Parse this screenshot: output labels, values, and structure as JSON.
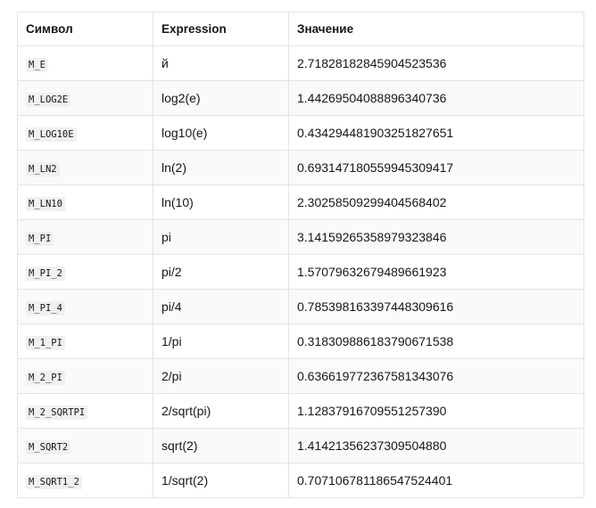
{
  "table": {
    "headers": {
      "symbol": "Символ",
      "expression": "Expression",
      "value": "Значение"
    },
    "rows": [
      {
        "symbol": "M_E",
        "expression": "й",
        "value": "2.71828182845904523536"
      },
      {
        "symbol": "M_LOG2E",
        "expression": "log2(e)",
        "value": "1.44269504088896340736"
      },
      {
        "symbol": "M_LOG10E",
        "expression": "log10(e)",
        "value": "0.434294481903251827651"
      },
      {
        "symbol": "M_LN2",
        "expression": "ln(2)",
        "value": "0.693147180559945309417"
      },
      {
        "symbol": "M_LN10",
        "expression": "ln(10)",
        "value": "2.30258509299404568402"
      },
      {
        "symbol": "M_PI",
        "expression": "pi",
        "value": "3.14159265358979323846"
      },
      {
        "symbol": "M_PI_2",
        "expression": "pi/2",
        "value": "1.57079632679489661923"
      },
      {
        "symbol": "M_PI_4",
        "expression": "pi/4",
        "value": "0.785398163397448309616"
      },
      {
        "symbol": "M_1_PI",
        "expression": "1/pi",
        "value": "0.318309886183790671538"
      },
      {
        "symbol": "M_2_PI",
        "expression": "2/pi",
        "value": "0.636619772367581343076"
      },
      {
        "symbol": "M_2_SQRTPI",
        "expression": "2/sqrt(pi)",
        "value": "1.12837916709551257390"
      },
      {
        "symbol": "M_SQRT2",
        "expression": "sqrt(2)",
        "value": "1.41421356237309504880"
      },
      {
        "symbol": "M_SQRT1_2",
        "expression": "1/sqrt(2)",
        "value": "0.707106781186547524401"
      }
    ]
  }
}
